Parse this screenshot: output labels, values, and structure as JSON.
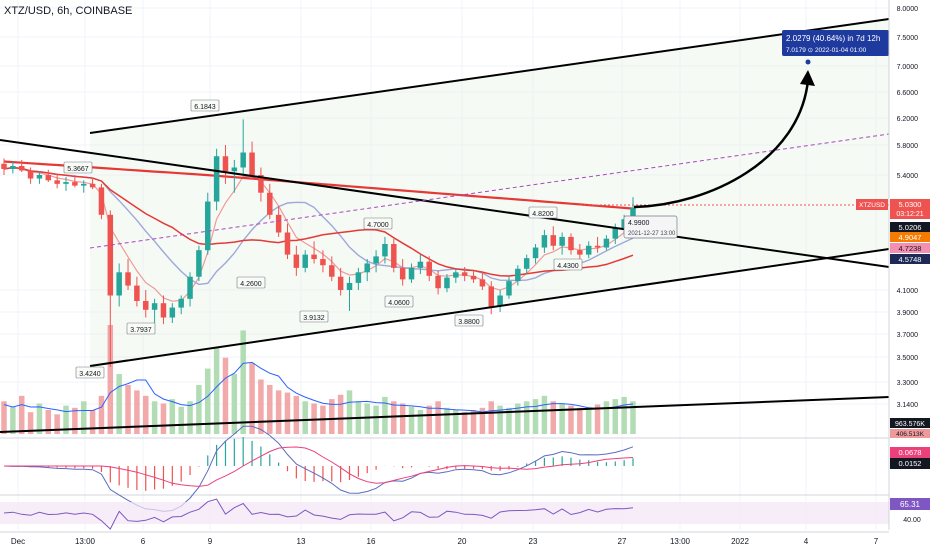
{
  "header": {
    "title": "XTZ/USD, 6h, COINBASE"
  },
  "chart_data": {
    "type": "candlestick",
    "symbol": "XTZUSD",
    "price_axis": {
      "ticks": [
        "8.0000",
        "7.5000",
        "7.0000",
        "6.6000",
        "6.2000",
        "5.8000",
        "5.4000",
        "4.1000",
        "3.9000",
        "3.7000",
        "3.5000",
        "3.3000",
        "3.1400"
      ],
      "tick_values": [
        8.0,
        7.5,
        7.0,
        6.6,
        6.2,
        5.8,
        5.4,
        4.1,
        3.9,
        3.7,
        3.5,
        3.3,
        3.14
      ],
      "range": [
        3.14,
        8.0
      ]
    },
    "time_axis": {
      "labels": [
        "Dec",
        "13:00",
        "6",
        "9",
        "13",
        "16",
        "20",
        "23",
        "27",
        "13:00",
        "2022",
        "4",
        "7"
      ]
    },
    "price_scale_labels": [
      {
        "text": "XTZUSD",
        "color": "#ef5350"
      },
      {
        "text": "5.0300",
        "color": "#ef5350"
      },
      {
        "text": "03:12:21",
        "color": "#ef5350"
      },
      {
        "text": "5.0206",
        "color": "#131722"
      },
      {
        "text": "4.9047",
        "color": "#f57c00"
      },
      {
        "text": "4.7238",
        "color": "#e57373"
      },
      {
        "text": "4.5748",
        "color": "#1e2a55"
      }
    ],
    "annotations": [
      {
        "text": "6.1843",
        "price": 6.1843
      },
      {
        "text": "5.3667",
        "price": 5.3667
      },
      {
        "text": "4.7000",
        "price": 4.7
      },
      {
        "text": "4.8200",
        "price": 4.82
      },
      {
        "text": "4.2600",
        "price": 4.26
      },
      {
        "text": "3.7937",
        "price": 3.7937
      },
      {
        "text": "3.9132",
        "price": 3.9132
      },
      {
        "text": "4.0600",
        "price": 4.06
      },
      {
        "text": "4.4300",
        "price": 4.43
      },
      {
        "text": "3.8800",
        "price": 3.88
      },
      {
        "text": "3.4240",
        "price": 3.424
      }
    ],
    "projection_box": {
      "line1": "2.0279 (40.64%) in 7d 12h",
      "line2": "7.0179 ⊙ 2022-01-04 01:00",
      "target": 7.0179
    },
    "current_box": {
      "line1": "4.9900",
      "line2": "2021-12-27 13:00"
    },
    "candles": [
      [
        5.55,
        5.62,
        5.4,
        5.48
      ],
      [
        5.48,
        5.58,
        5.42,
        5.52
      ],
      [
        5.52,
        5.6,
        5.44,
        5.46
      ],
      [
        5.46,
        5.5,
        5.3,
        5.36
      ],
      [
        5.36,
        5.45,
        5.3,
        5.4
      ],
      [
        5.4,
        5.47,
        5.32,
        5.34
      ],
      [
        5.34,
        5.42,
        5.25,
        5.3
      ],
      [
        5.3,
        5.38,
        5.22,
        5.32
      ],
      [
        5.32,
        5.4,
        5.26,
        5.28
      ],
      [
        5.28,
        5.34,
        5.2,
        5.3
      ],
      [
        5.3,
        5.37,
        5.24,
        5.26
      ],
      [
        5.26,
        5.3,
        4.9,
        4.95
      ],
      [
        4.95,
        5.0,
        3.42,
        4.05
      ],
      [
        4.05,
        4.4,
        3.95,
        4.3
      ],
      [
        4.3,
        4.45,
        4.1,
        4.15
      ],
      [
        4.15,
        4.25,
        3.95,
        4.0
      ],
      [
        4.0,
        4.1,
        3.85,
        3.92
      ],
      [
        3.92,
        4.02,
        3.8,
        3.98
      ],
      [
        3.98,
        4.05,
        3.79,
        3.85
      ],
      [
        3.85,
        3.98,
        3.8,
        3.94
      ],
      [
        3.94,
        4.05,
        3.88,
        4.02
      ],
      [
        4.02,
        4.3,
        3.95,
        4.25
      ],
      [
        4.25,
        4.6,
        4.2,
        4.55
      ],
      [
        4.55,
        5.2,
        4.5,
        5.1
      ],
      [
        5.1,
        5.75,
        5.0,
        5.65
      ],
      [
        5.65,
        5.8,
        5.3,
        5.45
      ],
      [
        5.45,
        5.6,
        5.2,
        5.5
      ],
      [
        5.5,
        6.18,
        5.4,
        5.7
      ],
      [
        5.7,
        5.85,
        5.35,
        5.4
      ],
      [
        5.4,
        5.5,
        5.1,
        5.2
      ],
      [
        5.2,
        5.3,
        4.9,
        4.95
      ],
      [
        4.95,
        5.05,
        4.7,
        4.75
      ],
      [
        4.75,
        4.85,
        4.45,
        4.5
      ],
      [
        4.5,
        4.6,
        4.26,
        4.35
      ],
      [
        4.35,
        4.55,
        4.3,
        4.5
      ],
      [
        4.5,
        4.65,
        4.4,
        4.45
      ],
      [
        4.45,
        4.55,
        4.3,
        4.38
      ],
      [
        4.38,
        4.48,
        4.2,
        4.25
      ],
      [
        4.25,
        4.35,
        4.05,
        4.1
      ],
      [
        4.1,
        4.25,
        3.91,
        4.18
      ],
      [
        4.18,
        4.35,
        4.1,
        4.3
      ],
      [
        4.3,
        4.45,
        4.2,
        4.4
      ],
      [
        4.4,
        4.55,
        4.3,
        4.48
      ],
      [
        4.48,
        4.7,
        4.4,
        4.62
      ],
      [
        4.62,
        4.68,
        4.3,
        4.35
      ],
      [
        4.35,
        4.45,
        4.15,
        4.22
      ],
      [
        4.22,
        4.4,
        4.18,
        4.35
      ],
      [
        4.35,
        4.5,
        4.28,
        4.42
      ],
      [
        4.42,
        4.48,
        4.2,
        4.26
      ],
      [
        4.26,
        4.32,
        4.06,
        4.12
      ],
      [
        4.12,
        4.28,
        4.08,
        4.24
      ],
      [
        4.24,
        4.34,
        4.18,
        4.3
      ],
      [
        4.3,
        4.36,
        4.2,
        4.26
      ],
      [
        4.26,
        4.32,
        4.18,
        4.22
      ],
      [
        4.22,
        4.3,
        4.1,
        4.14
      ],
      [
        4.14,
        4.2,
        3.88,
        3.95
      ],
      [
        3.95,
        4.1,
        3.9,
        4.05
      ],
      [
        4.05,
        4.25,
        4.02,
        4.2
      ],
      [
        4.2,
        4.38,
        4.15,
        4.34
      ],
      [
        4.34,
        4.5,
        4.28,
        4.46
      ],
      [
        4.46,
        4.62,
        4.4,
        4.58
      ],
      [
        4.58,
        4.78,
        4.52,
        4.72
      ],
      [
        4.72,
        4.82,
        4.55,
        4.6
      ],
      [
        4.6,
        4.75,
        4.5,
        4.7
      ],
      [
        4.7,
        4.74,
        4.5,
        4.55
      ],
      [
        4.55,
        4.62,
        4.43,
        4.5
      ],
      [
        4.5,
        4.65,
        4.46,
        4.6
      ],
      [
        4.6,
        4.7,
        4.52,
        4.58
      ],
      [
        4.58,
        4.72,
        4.55,
        4.68
      ],
      [
        4.68,
        4.85,
        4.62,
        4.8
      ],
      [
        4.8,
        4.95,
        4.74,
        4.9
      ],
      [
        4.9,
        5.15,
        4.85,
        5.03
      ]
    ],
    "volume": [
      0.3,
      0.25,
      0.35,
      0.2,
      0.28,
      0.22,
      0.18,
      0.26,
      0.24,
      0.3,
      0.22,
      0.35,
      1.0,
      0.55,
      0.45,
      0.4,
      0.35,
      0.3,
      0.28,
      0.32,
      0.25,
      0.3,
      0.45,
      0.6,
      0.8,
      0.7,
      0.55,
      0.95,
      0.65,
      0.5,
      0.45,
      0.4,
      0.38,
      0.35,
      0.3,
      0.28,
      0.26,
      0.32,
      0.36,
      0.4,
      0.3,
      0.28,
      0.26,
      0.34,
      0.3,
      0.28,
      0.25,
      0.22,
      0.26,
      0.3,
      0.24,
      0.22,
      0.2,
      0.22,
      0.24,
      0.3,
      0.26,
      0.24,
      0.28,
      0.3,
      0.32,
      0.35,
      0.3,
      0.28,
      0.26,
      0.24,
      0.25,
      0.27,
      0.3,
      0.32,
      0.34,
      0.3
    ],
    "volume_labels": [
      "963.576K",
      "406.513K"
    ],
    "macd_labels": [
      "0.0678",
      "0.0152"
    ],
    "rsi": {
      "value_label": "65.31",
      "level_label": "40.00"
    }
  }
}
